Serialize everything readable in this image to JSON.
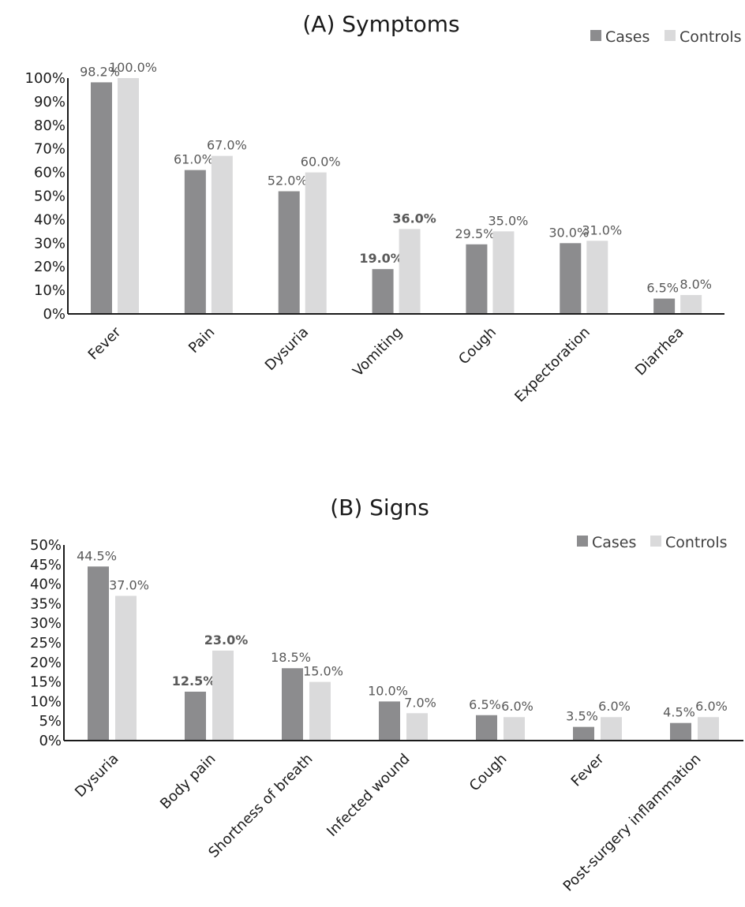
{
  "colors": {
    "cases": "#8c8c8e",
    "controls": "#dadadb",
    "axis": "#1a1a1a",
    "label": "#595959"
  },
  "chart_data": [
    {
      "type": "bar",
      "title": "(A) Symptoms",
      "categories": [
        "Fever",
        "Pain",
        "Dysuria",
        "Vomiting",
        "Cough",
        "Expectoration",
        "Diarrhea"
      ],
      "series": [
        {
          "name": "Cases",
          "values": [
            98.2,
            61.0,
            52.0,
            19.0,
            29.5,
            30.0,
            6.5
          ],
          "labels": [
            "98.2%",
            "61.0%",
            "52.0%",
            "19.0%",
            "29.5%",
            "30.0%",
            "6.5%"
          ],
          "bold": [
            false,
            false,
            false,
            true,
            false,
            false,
            false
          ]
        },
        {
          "name": "Controls",
          "values": [
            100.0,
            67.0,
            60.0,
            36.0,
            35.0,
            31.0,
            8.0
          ],
          "labels": [
            "100.0%",
            "67.0%",
            "60.0%",
            "36.0%",
            "35.0%",
            "31.0%",
            "8.0%"
          ],
          "bold": [
            false,
            false,
            false,
            true,
            false,
            false,
            false
          ]
        }
      ],
      "ylim": [
        0,
        100
      ],
      "yticks": [
        "0%",
        "10%",
        "20%",
        "30%",
        "40%",
        "50%",
        "60%",
        "70%",
        "80%",
        "90%",
        "100%"
      ],
      "xlabel": "",
      "ylabel": "",
      "grid": false,
      "legend": "top-right"
    },
    {
      "type": "bar",
      "title": "(B) Signs",
      "categories": [
        "Dysuria",
        "Body pain",
        "Shortness of breath",
        "Infected wound",
        "Cough",
        "Fever",
        "Post-surgery inflammation"
      ],
      "series": [
        {
          "name": "Cases",
          "values": [
            44.5,
            12.5,
            18.5,
            10.0,
            6.5,
            3.5,
            4.5
          ],
          "labels": [
            "44.5%",
            "12.5%",
            "18.5%",
            "10.0%",
            "6.5%",
            "3.5%",
            "4.5%"
          ],
          "bold": [
            false,
            true,
            false,
            false,
            false,
            false,
            false
          ]
        },
        {
          "name": "Controls",
          "values": [
            37.0,
            23.0,
            15.0,
            7.0,
            6.0,
            6.0,
            6.0
          ],
          "labels": [
            "37.0%",
            "23.0%",
            "15.0%",
            "7.0%",
            "6.0%",
            "6.0%",
            "6.0%"
          ],
          "bold": [
            false,
            true,
            false,
            false,
            false,
            false,
            false
          ]
        }
      ],
      "ylim": [
        0,
        50
      ],
      "yticks": [
        "0%",
        "5%",
        "10%",
        "15%",
        "20%",
        "25%",
        "30%",
        "35%",
        "40%",
        "45%",
        "50%"
      ],
      "xlabel": "",
      "ylabel": "",
      "grid": false,
      "legend": "top-right"
    }
  ]
}
